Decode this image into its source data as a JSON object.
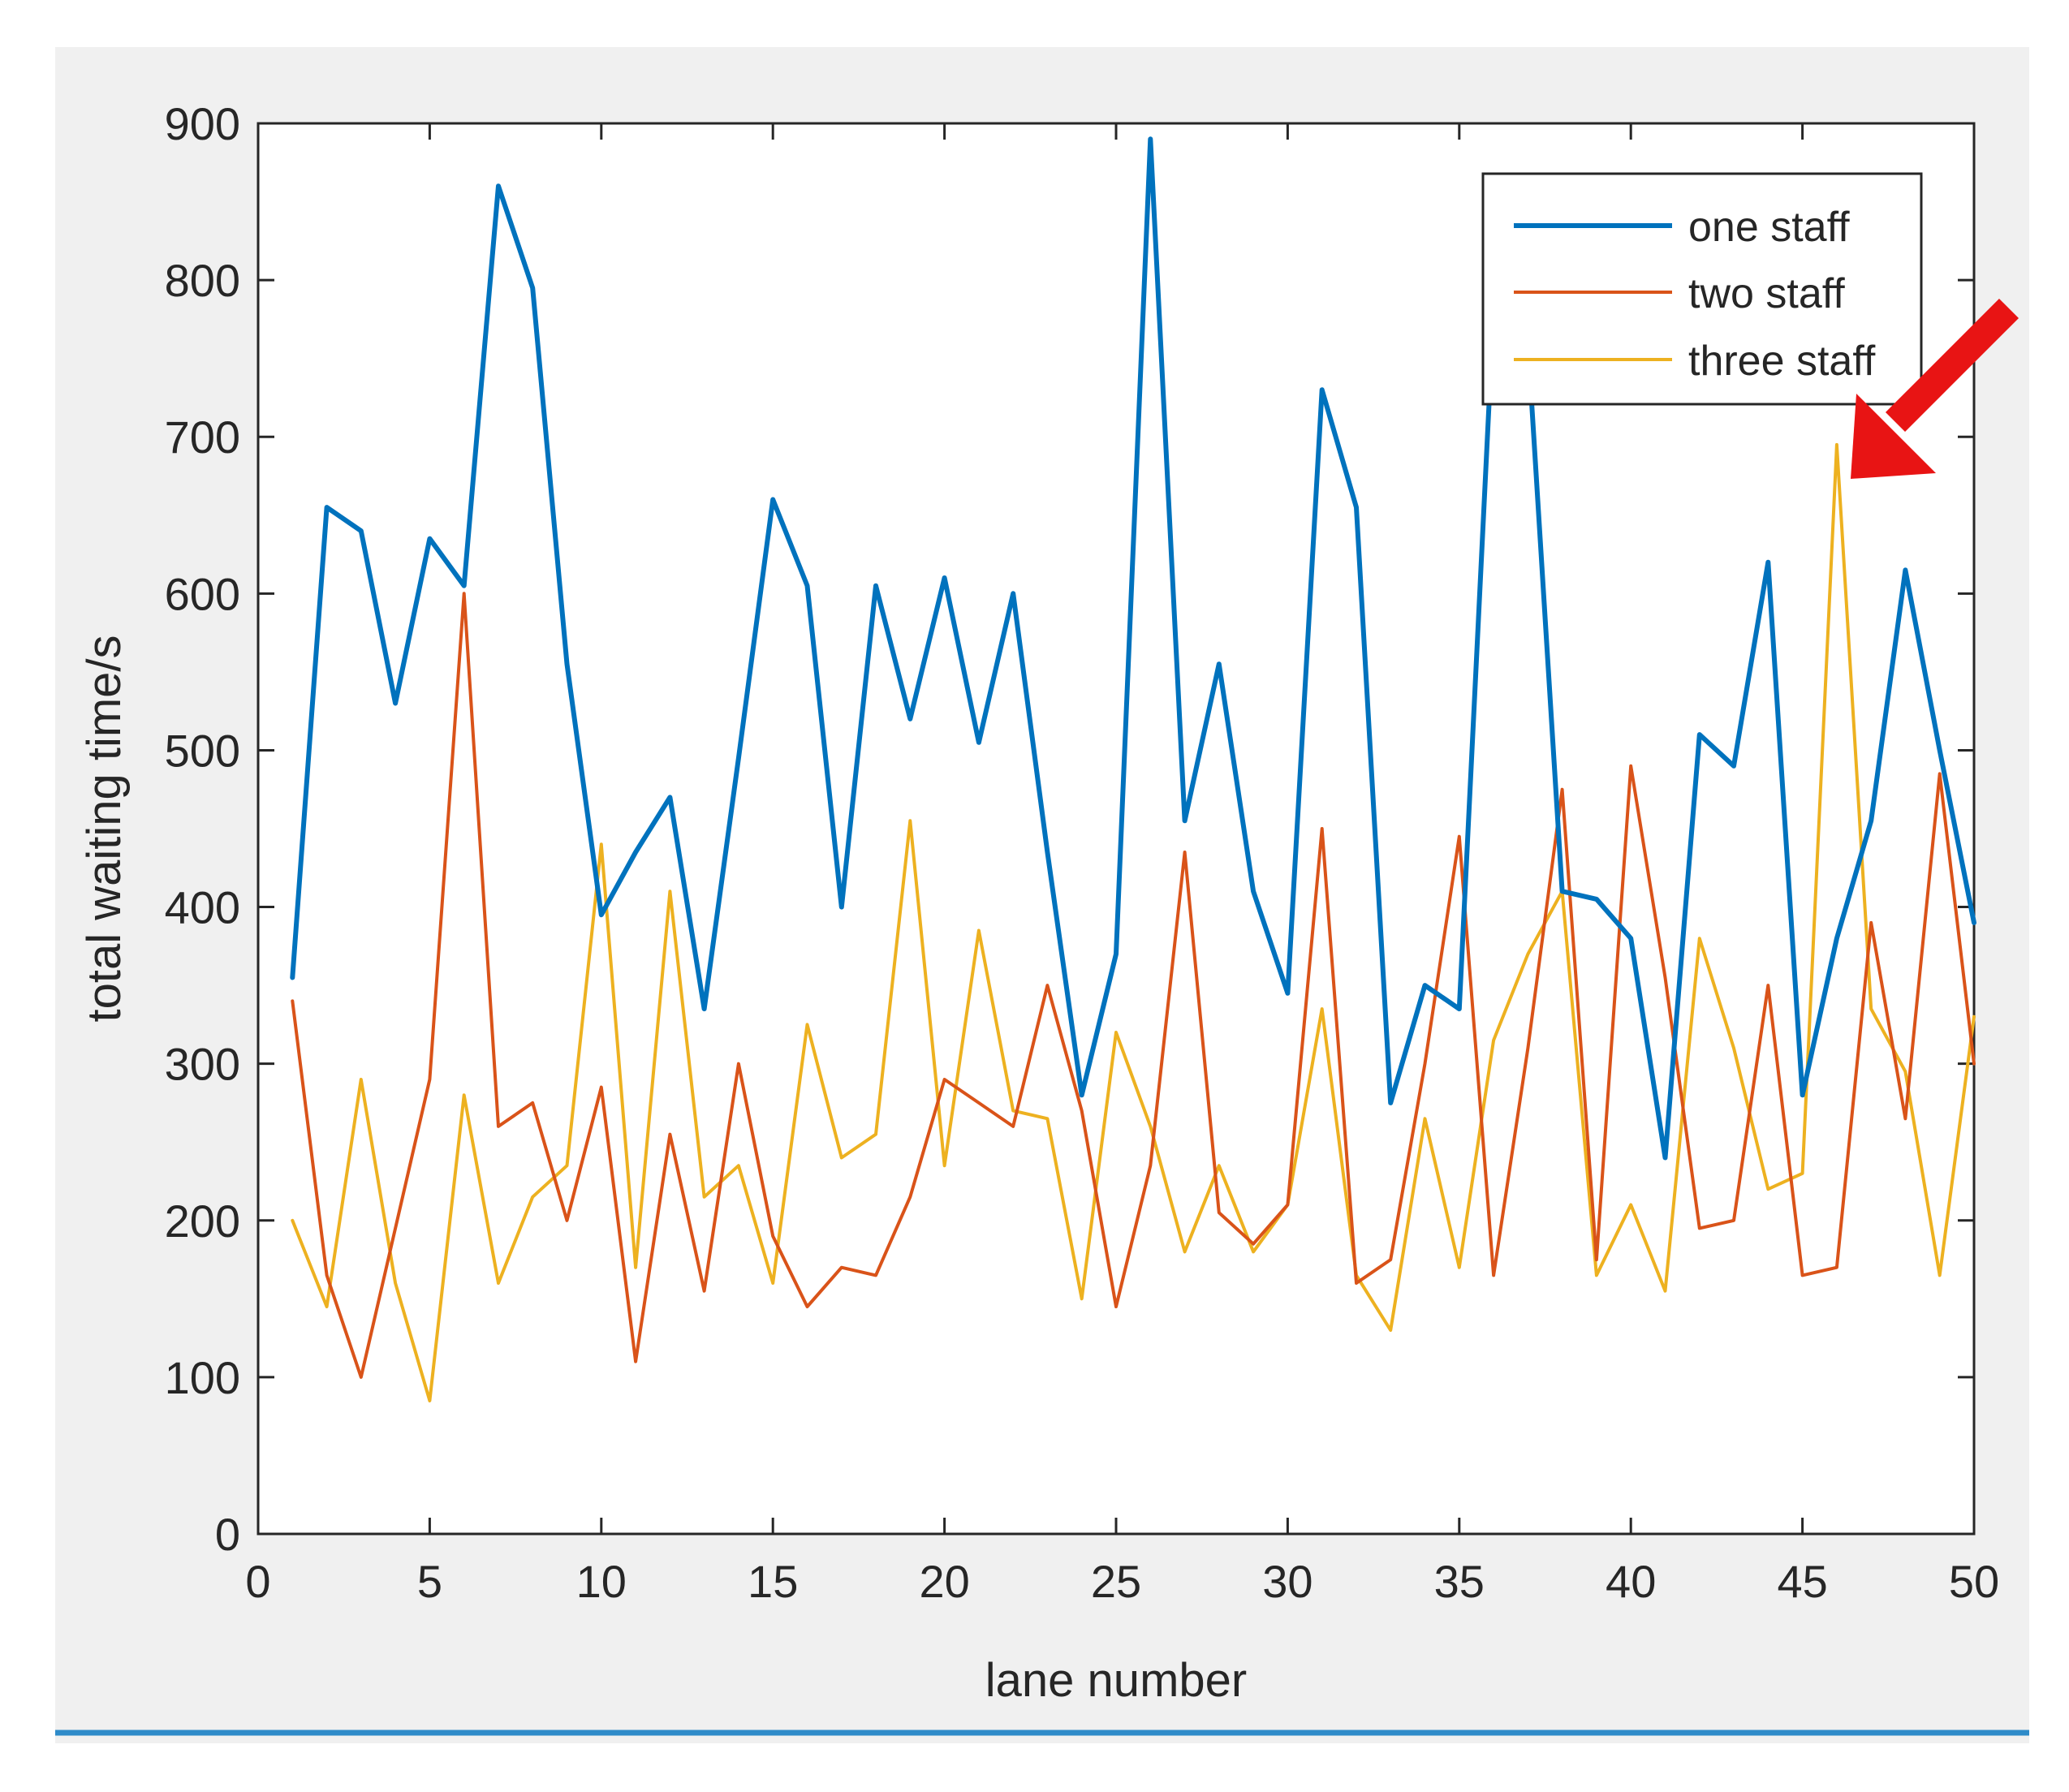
{
  "chart_data": {
    "type": "line",
    "xlabel": "lane number",
    "ylabel": "total waiting time/s",
    "xlim": [
      0,
      50
    ],
    "ylim": [
      0,
      900
    ],
    "xticks": [
      0,
      5,
      10,
      15,
      20,
      25,
      30,
      35,
      40,
      45,
      50
    ],
    "yticks": [
      0,
      100,
      200,
      300,
      400,
      500,
      600,
      700,
      800,
      900
    ],
    "grid": false,
    "legend_position": "top-right",
    "x": [
      1,
      2,
      3,
      4,
      5,
      6,
      7,
      8,
      9,
      10,
      11,
      12,
      13,
      14,
      15,
      16,
      17,
      18,
      19,
      20,
      21,
      22,
      23,
      24,
      25,
      26,
      27,
      28,
      29,
      30,
      31,
      32,
      33,
      34,
      35,
      36,
      37,
      38,
      39,
      40,
      41,
      42,
      43,
      44,
      45,
      46,
      47,
      48,
      49,
      50
    ],
    "series": [
      {
        "name": "one staff",
        "color": "#0072BD",
        "values": [
          355,
          655,
          640,
          530,
          635,
          605,
          860,
          795,
          555,
          395,
          435,
          470,
          335,
          495,
          660,
          605,
          400,
          605,
          520,
          610,
          505,
          600,
          435,
          280,
          370,
          890,
          455,
          555,
          410,
          345,
          730,
          655,
          275,
          350,
          335,
          780,
          760,
          410,
          405,
          380,
          240,
          510,
          490,
          620,
          280,
          380,
          455,
          615,
          500,
          390
        ]
      },
      {
        "name": "two staff",
        "color": "#D95319",
        "values": [
          340,
          165,
          100,
          195,
          290,
          600,
          260,
          275,
          200,
          285,
          110,
          255,
          155,
          300,
          190,
          145,
          170,
          165,
          215,
          290,
          275,
          260,
          350,
          270,
          145,
          235,
          435,
          205,
          185,
          210,
          450,
          160,
          175,
          300,
          445,
          165,
          310,
          475,
          175,
          490,
          355,
          195,
          200,
          350,
          165,
          170,
          390,
          265,
          485,
          300
        ]
      },
      {
        "name": "three staff",
        "color": "#EDB120",
        "values": [
          200,
          145,
          290,
          160,
          85,
          280,
          160,
          215,
          235,
          440,
          170,
          410,
          215,
          235,
          160,
          325,
          240,
          255,
          455,
          235,
          385,
          270,
          265,
          150,
          320,
          260,
          180,
          235,
          180,
          210,
          335,
          165,
          130,
          265,
          170,
          315,
          370,
          410,
          165,
          210,
          155,
          380,
          310,
          220,
          230,
          695,
          335,
          295,
          165,
          330
        ]
      }
    ],
    "annotation": {
      "type": "arrow",
      "color": "#E81414",
      "points_to": {
        "x": 46,
        "y": 695
      }
    }
  },
  "colors": {
    "figure_background": "#F0F0F0",
    "axes_background": "#FFFFFF",
    "axis_line": "#262626"
  }
}
